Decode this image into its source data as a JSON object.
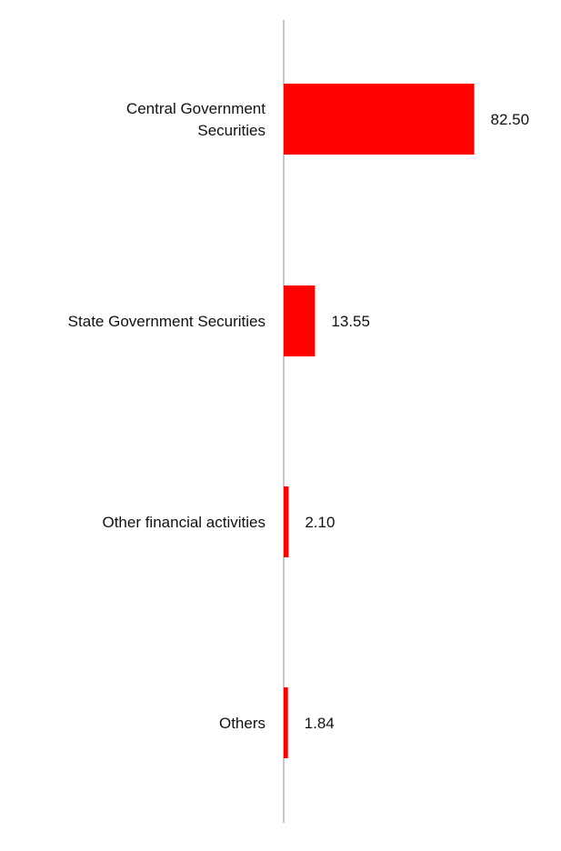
{
  "chart_data": {
    "type": "bar",
    "orientation": "horizontal",
    "categories": [
      [
        "Central Government",
        "Securities"
      ],
      [
        "State Government Securities"
      ],
      [
        "Other financial activities"
      ],
      [
        "Others"
      ]
    ],
    "values": [
      82.5,
      13.55,
      2.1,
      1.84
    ],
    "value_labels": [
      "82.50",
      "13.55",
      "2.10",
      "1.84"
    ],
    "title": "",
    "xlabel": "",
    "ylabel": "",
    "xlim": [
      0,
      100
    ],
    "grid": false,
    "legend": "none",
    "bar_color": "#ff0000",
    "axis_color": "#c8c8c8"
  }
}
